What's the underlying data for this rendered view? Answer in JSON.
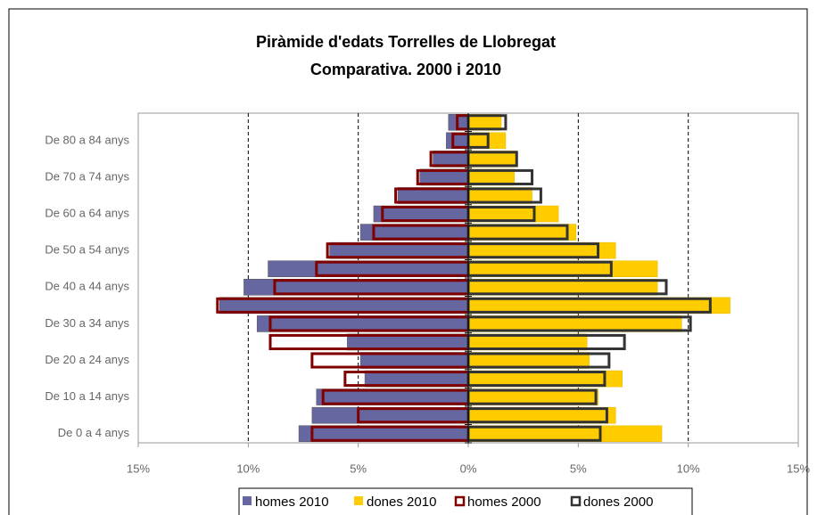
{
  "chart_data": {
    "type": "bar",
    "orientation": "horizontal",
    "title": "Piràmide d'edats Torrelles de Llobregat",
    "subtitle": "Comparativa. 2000 i 2010",
    "categories": [
      "De 0 a 4 anys",
      null,
      "De 10 a 14 anys",
      null,
      "De 20 a 24 anys",
      null,
      "De 30 a 34 anys",
      null,
      "De 40 a 44 anys",
      null,
      "De 50 a 54 anys",
      null,
      "De 60 a 64 anys",
      null,
      "De 70 a 74 anys",
      null,
      "De 80 a 84 anys",
      null
    ],
    "series": [
      {
        "name": "homes 2010",
        "color": "#6666a0",
        "side": "left",
        "outline": false,
        "values": [
          7.7,
          7.1,
          6.9,
          4.7,
          4.9,
          5.5,
          9.6,
          11.3,
          10.2,
          9.1,
          6.3,
          4.9,
          4.3,
          3.2,
          2.2,
          1.6,
          1.0,
          0.9
        ]
      },
      {
        "name": "dones 2010",
        "color": "#ffcc00",
        "side": "right",
        "outline": false,
        "values": [
          8.8,
          6.7,
          5.9,
          7.0,
          5.5,
          5.4,
          9.7,
          11.9,
          8.6,
          8.6,
          6.7,
          4.9,
          4.1,
          2.9,
          2.1,
          2.2,
          1.7,
          1.5
        ]
      },
      {
        "name": "homes 2000",
        "color": "#800000",
        "side": "left",
        "outline": true,
        "values": [
          7.1,
          5.0,
          6.6,
          5.6,
          7.1,
          9.0,
          9.0,
          11.4,
          8.8,
          6.9,
          6.4,
          4.3,
          3.9,
          3.3,
          2.3,
          1.7,
          0.7,
          0.5
        ]
      },
      {
        "name": "dones 2000",
        "color": "#333333",
        "side": "right",
        "outline": true,
        "values": [
          6.0,
          6.3,
          5.8,
          6.2,
          6.4,
          7.1,
          10.1,
          11.0,
          9.0,
          6.5,
          5.9,
          4.5,
          3.0,
          3.3,
          2.9,
          2.2,
          0.9,
          1.7
        ]
      }
    ],
    "xlim": [
      -15,
      15
    ],
    "xticks": [
      {
        "value": -15,
        "label": "15%"
      },
      {
        "value": -10,
        "label": "10%"
      },
      {
        "value": -5,
        "label": "5%"
      },
      {
        "value": 0,
        "label": "0%"
      },
      {
        "value": 5,
        "label": "5%"
      },
      {
        "value": 10,
        "label": "10%"
      },
      {
        "value": 15,
        "label": "15%"
      }
    ],
    "grid": true,
    "legend": "bottom"
  }
}
